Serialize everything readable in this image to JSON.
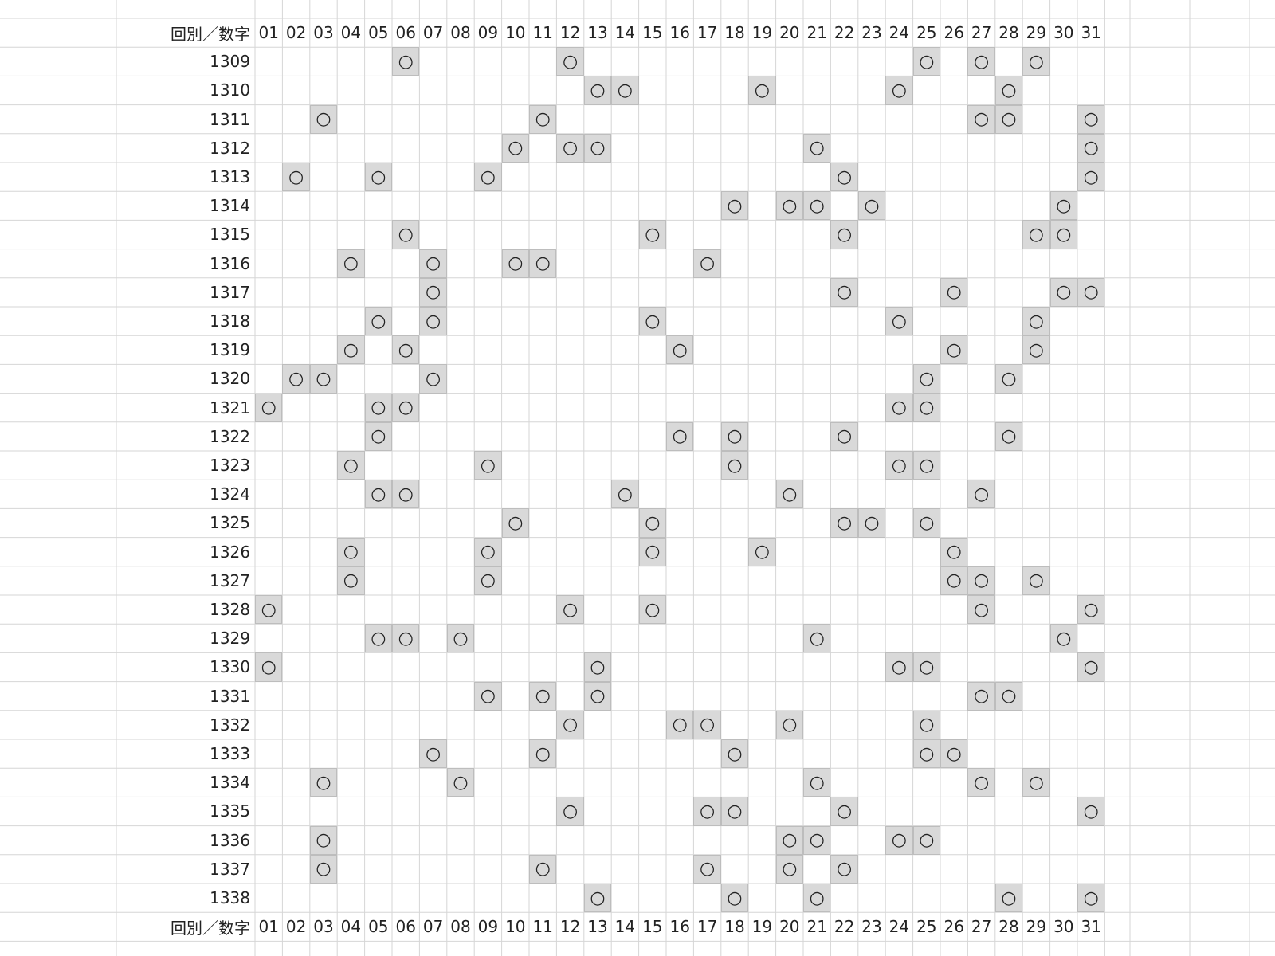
{
  "table": {
    "header": [
      "回別／数字",
      "01",
      "02",
      "03",
      "04",
      "05",
      "06",
      "07",
      "08",
      "09",
      "10",
      "11",
      "12",
      "13",
      "14",
      "15",
      "16",
      "17",
      "18",
      "19",
      "20",
      "21",
      "22",
      "23",
      "24",
      "25",
      "26",
      "27",
      "28",
      "29",
      "30",
      "31"
    ],
    "rows": [
      {
        "round": "1309",
        "cells": [
          null,
          null,
          null,
          null,
          null,
          "○",
          null,
          null,
          null,
          null,
          null,
          "○",
          null,
          null,
          null,
          null,
          null,
          null,
          null,
          null,
          null,
          null,
          null,
          null,
          "○",
          null,
          "○",
          null,
          "○",
          null,
          null
        ]
      },
      {
        "round": "1310",
        "cells": [
          null,
          null,
          null,
          null,
          null,
          null,
          null,
          null,
          null,
          null,
          null,
          null,
          "○",
          "○",
          null,
          null,
          null,
          null,
          "○",
          null,
          null,
          null,
          null,
          "○",
          null,
          null,
          null,
          "○",
          null,
          null,
          null
        ]
      },
      {
        "round": "1311",
        "cells": [
          null,
          null,
          "○",
          null,
          null,
          null,
          null,
          null,
          null,
          null,
          "○",
          null,
          null,
          null,
          null,
          null,
          null,
          null,
          null,
          null,
          null,
          null,
          null,
          null,
          null,
          null,
          "○",
          "○",
          null,
          null,
          "○"
        ]
      },
      {
        "round": "1312",
        "cells": [
          null,
          null,
          null,
          null,
          null,
          null,
          null,
          null,
          null,
          "○",
          null,
          "○",
          "○",
          null,
          null,
          null,
          null,
          null,
          null,
          null,
          "○",
          null,
          null,
          null,
          null,
          null,
          null,
          null,
          null,
          null,
          "○"
        ]
      },
      {
        "round": "1313",
        "cells": [
          null,
          "○",
          null,
          null,
          "○",
          null,
          null,
          null,
          "○",
          null,
          null,
          null,
          null,
          null,
          null,
          null,
          null,
          null,
          null,
          null,
          null,
          "○",
          null,
          null,
          null,
          null,
          null,
          null,
          null,
          null,
          "○"
        ]
      },
      {
        "round": "1314",
        "cells": [
          null,
          null,
          null,
          null,
          null,
          null,
          null,
          null,
          null,
          null,
          null,
          null,
          null,
          null,
          null,
          null,
          null,
          "○",
          null,
          "○",
          "○",
          null,
          "○",
          null,
          null,
          null,
          null,
          null,
          null,
          "○",
          null
        ]
      },
      {
        "round": "1315",
        "cells": [
          null,
          null,
          null,
          null,
          null,
          "○",
          null,
          null,
          null,
          null,
          null,
          null,
          null,
          null,
          "○",
          null,
          null,
          null,
          null,
          null,
          null,
          "○",
          null,
          null,
          null,
          null,
          null,
          null,
          "○",
          "○",
          null
        ]
      },
      {
        "round": "1316",
        "cells": [
          null,
          null,
          null,
          "○",
          null,
          null,
          "○",
          null,
          null,
          "○",
          "○",
          null,
          null,
          null,
          null,
          null,
          "○",
          null,
          null,
          null,
          null,
          null,
          null,
          null,
          null,
          null,
          null,
          null,
          null,
          null,
          null
        ]
      },
      {
        "round": "1317",
        "cells": [
          null,
          null,
          null,
          null,
          null,
          null,
          "○",
          null,
          null,
          null,
          null,
          null,
          null,
          null,
          null,
          null,
          null,
          null,
          null,
          null,
          null,
          "○",
          null,
          null,
          null,
          "○",
          null,
          null,
          null,
          "○",
          "○"
        ]
      },
      {
        "round": "1318",
        "cells": [
          null,
          null,
          null,
          null,
          "○",
          null,
          "○",
          null,
          null,
          null,
          null,
          null,
          null,
          null,
          "○",
          null,
          null,
          null,
          null,
          null,
          null,
          null,
          null,
          "○",
          null,
          null,
          null,
          null,
          "○",
          null,
          null
        ]
      },
      {
        "round": "1319",
        "cells": [
          null,
          null,
          null,
          "○",
          null,
          "○",
          null,
          null,
          null,
          null,
          null,
          null,
          null,
          null,
          null,
          "○",
          null,
          null,
          null,
          null,
          null,
          null,
          null,
          null,
          null,
          "○",
          null,
          null,
          "○",
          null,
          null
        ]
      },
      {
        "round": "1320",
        "cells": [
          null,
          "○",
          "○",
          null,
          null,
          null,
          "○",
          null,
          null,
          null,
          null,
          null,
          null,
          null,
          null,
          null,
          null,
          null,
          null,
          null,
          null,
          null,
          null,
          null,
          "○",
          null,
          null,
          "○",
          null,
          null,
          null
        ]
      },
      {
        "round": "1321",
        "cells": [
          "○",
          null,
          null,
          null,
          "○",
          "○",
          null,
          null,
          null,
          null,
          null,
          null,
          null,
          null,
          null,
          null,
          null,
          null,
          null,
          null,
          null,
          null,
          null,
          "○",
          "○",
          null,
          null,
          null,
          null,
          null,
          null
        ]
      },
      {
        "round": "1322",
        "cells": [
          null,
          null,
          null,
          null,
          "○",
          null,
          null,
          null,
          null,
          null,
          null,
          null,
          null,
          null,
          null,
          "○",
          null,
          "○",
          null,
          null,
          null,
          "○",
          null,
          null,
          null,
          null,
          null,
          "○",
          null,
          null,
          null
        ]
      },
      {
        "round": "1323",
        "cells": [
          null,
          null,
          null,
          "○",
          null,
          null,
          null,
          null,
          "○",
          null,
          null,
          null,
          null,
          null,
          null,
          null,
          null,
          "○",
          null,
          null,
          null,
          null,
          null,
          "○",
          "○",
          null,
          null,
          null,
          null,
          null,
          null
        ]
      },
      {
        "round": "1324",
        "cells": [
          null,
          null,
          null,
          null,
          "○",
          "○",
          null,
          null,
          null,
          null,
          null,
          null,
          null,
          "○",
          null,
          null,
          null,
          null,
          null,
          "○",
          null,
          null,
          null,
          null,
          null,
          null,
          "○",
          null,
          null,
          null,
          null
        ]
      },
      {
        "round": "1325",
        "cells": [
          null,
          null,
          null,
          null,
          null,
          null,
          null,
          null,
          null,
          "○",
          null,
          null,
          null,
          null,
          "○",
          null,
          null,
          null,
          null,
          null,
          null,
          "○",
          "○",
          null,
          "○",
          null,
          null,
          null,
          null,
          null,
          null
        ]
      },
      {
        "round": "1326",
        "cells": [
          null,
          null,
          null,
          "○",
          null,
          null,
          null,
          null,
          "○",
          null,
          null,
          null,
          null,
          null,
          "○",
          null,
          null,
          null,
          "○",
          null,
          null,
          null,
          null,
          null,
          null,
          "○",
          null,
          null,
          null,
          null,
          null
        ]
      },
      {
        "round": "1327",
        "cells": [
          null,
          null,
          null,
          "○",
          null,
          null,
          null,
          null,
          "○",
          null,
          null,
          null,
          null,
          null,
          null,
          null,
          null,
          null,
          null,
          null,
          null,
          null,
          null,
          null,
          null,
          "○",
          "○",
          null,
          "○",
          null,
          null
        ]
      },
      {
        "round": "1328",
        "cells": [
          "○",
          null,
          null,
          null,
          null,
          null,
          null,
          null,
          null,
          null,
          null,
          "○",
          null,
          null,
          "○",
          null,
          null,
          null,
          null,
          null,
          null,
          null,
          null,
          null,
          null,
          null,
          "○",
          null,
          null,
          null,
          "○"
        ]
      },
      {
        "round": "1329",
        "cells": [
          null,
          null,
          null,
          null,
          "○",
          "○",
          null,
          "○",
          null,
          null,
          null,
          null,
          null,
          null,
          null,
          null,
          null,
          null,
          null,
          null,
          "○",
          null,
          null,
          null,
          null,
          null,
          null,
          null,
          null,
          "○",
          null
        ]
      },
      {
        "round": "1330",
        "cells": [
          "○",
          null,
          null,
          null,
          null,
          null,
          null,
          null,
          null,
          null,
          null,
          null,
          "○",
          null,
          null,
          null,
          null,
          null,
          null,
          null,
          null,
          null,
          null,
          "○",
          "○",
          null,
          null,
          null,
          null,
          null,
          "○"
        ]
      },
      {
        "round": "1331",
        "cells": [
          null,
          null,
          null,
          null,
          null,
          null,
          null,
          null,
          "○",
          null,
          "○",
          null,
          "○",
          null,
          null,
          null,
          null,
          null,
          null,
          null,
          null,
          null,
          null,
          null,
          null,
          null,
          "○",
          "○",
          null,
          null,
          null
        ]
      },
      {
        "round": "1332",
        "cells": [
          null,
          null,
          null,
          null,
          null,
          null,
          null,
          null,
          null,
          null,
          null,
          "○",
          null,
          null,
          null,
          "○",
          "○",
          null,
          null,
          "○",
          null,
          null,
          null,
          null,
          "○",
          null,
          null,
          null,
          null,
          null,
          null
        ]
      },
      {
        "round": "1333",
        "cells": [
          null,
          null,
          null,
          null,
          null,
          null,
          "○",
          null,
          null,
          null,
          "○",
          null,
          null,
          null,
          null,
          null,
          null,
          "○",
          null,
          null,
          null,
          null,
          null,
          null,
          "○",
          "○",
          null,
          null,
          null,
          null,
          null
        ]
      },
      {
        "round": "1334",
        "cells": [
          null,
          null,
          "○",
          null,
          null,
          null,
          null,
          "○",
          null,
          null,
          null,
          null,
          null,
          null,
          null,
          null,
          null,
          null,
          null,
          null,
          "○",
          null,
          null,
          null,
          null,
          null,
          "○",
          null,
          "○",
          null,
          null
        ]
      },
      {
        "round": "1335",
        "cells": [
          null,
          null,
          null,
          null,
          null,
          null,
          null,
          null,
          null,
          null,
          null,
          "○",
          null,
          null,
          null,
          null,
          "○",
          "○",
          null,
          null,
          null,
          "○",
          null,
          null,
          null,
          null,
          null,
          null,
          null,
          null,
          "○"
        ]
      },
      {
        "round": "1336",
        "cells": [
          null,
          null,
          "○",
          null,
          null,
          null,
          null,
          null,
          null,
          null,
          null,
          null,
          null,
          null,
          null,
          null,
          null,
          null,
          null,
          "○",
          "○",
          null,
          null,
          "○",
          "○",
          null,
          null,
          null,
          null,
          null,
          null
        ]
      },
      {
        "round": "1337",
        "cells": [
          null,
          null,
          "○",
          null,
          null,
          null,
          null,
          null,
          null,
          null,
          "○",
          null,
          null,
          null,
          null,
          null,
          "○",
          null,
          null,
          "○",
          null,
          "○",
          null,
          null,
          null,
          null,
          null,
          null,
          null,
          null,
          null
        ]
      },
      {
        "round": "1338",
        "cells": [
          null,
          null,
          null,
          null,
          null,
          null,
          null,
          null,
          null,
          null,
          null,
          null,
          "○",
          null,
          null,
          null,
          null,
          "○",
          null,
          null,
          "○",
          null,
          null,
          null,
          null,
          null,
          null,
          "○",
          null,
          null,
          "○"
        ]
      }
    ],
    "footer": [
      "回別／数字",
      "01",
      "02",
      "03",
      "04",
      "05",
      "06",
      "07",
      "08",
      "09",
      "10",
      "11",
      "12",
      "13",
      "14",
      "15",
      "16",
      "17",
      "18",
      "19",
      "20",
      "21",
      "22",
      "23",
      "24",
      "25",
      "26",
      "27",
      "28",
      "29",
      "30",
      "31"
    ]
  }
}
